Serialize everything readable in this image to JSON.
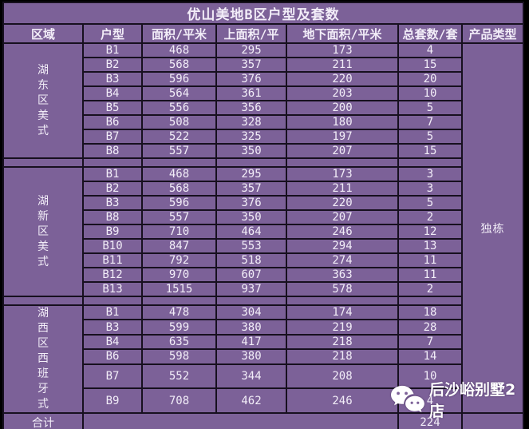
{
  "title": "优山美地B区户型及套数",
  "chart_data": {
    "type": "table",
    "title": "优山美地B区户型及套数",
    "columns": [
      "区域",
      "户型",
      "面积/平米",
      "上面积/平",
      "地下面积/平米",
      "总套数/套",
      "产品类型"
    ],
    "product_type_value": "独栋",
    "sections": [
      {
        "region": "湖东区美式",
        "rows": [
          [
            "B1",
            468,
            295,
            173,
            4
          ],
          [
            "B2",
            568,
            357,
            211,
            15
          ],
          [
            "B3",
            596,
            376,
            220,
            20
          ],
          [
            "B4",
            564,
            361,
            203,
            10
          ],
          [
            "B5",
            556,
            356,
            200,
            5
          ],
          [
            "B6",
            508,
            328,
            180,
            7
          ],
          [
            "B7",
            522,
            325,
            197,
            5
          ],
          [
            "B8",
            557,
            350,
            207,
            15
          ]
        ]
      },
      {
        "region": "湖新区美式",
        "rows": [
          [
            "B1",
            468,
            295,
            173,
            3
          ],
          [
            "B2",
            568,
            357,
            211,
            3
          ],
          [
            "B3",
            596,
            376,
            220,
            5
          ],
          [
            "B8",
            557,
            350,
            207,
            2
          ],
          [
            "B9",
            710,
            464,
            246,
            12
          ],
          [
            "B10",
            847,
            553,
            294,
            13
          ],
          [
            "B11",
            792,
            518,
            274,
            11
          ],
          [
            "B12",
            970,
            607,
            363,
            11
          ],
          [
            "B13",
            1515,
            937,
            578,
            2
          ]
        ]
      },
      {
        "region": "湖西区西班牙式",
        "rows": [
          [
            "B1",
            478,
            304,
            174,
            18
          ],
          [
            "B3",
            599,
            380,
            219,
            28
          ],
          [
            "B4",
            635,
            417,
            218,
            7
          ],
          [
            "B6",
            598,
            380,
            218,
            14
          ],
          [
            "B7",
            552,
            344,
            208,
            10
          ],
          [
            "B9",
            708,
            462,
            246,
            4
          ]
        ]
      }
    ],
    "footer": {
      "label": "合计",
      "total": 224
    }
  },
  "watermark": {
    "icon": "wechat-icon",
    "text": "后沙峪别墅2店"
  },
  "colors": {
    "cell_bg": "#7c6198",
    "border": "#17101f",
    "text": "#f2edf8",
    "page_bg": "#000000",
    "watermark_text": "#ffffff"
  }
}
